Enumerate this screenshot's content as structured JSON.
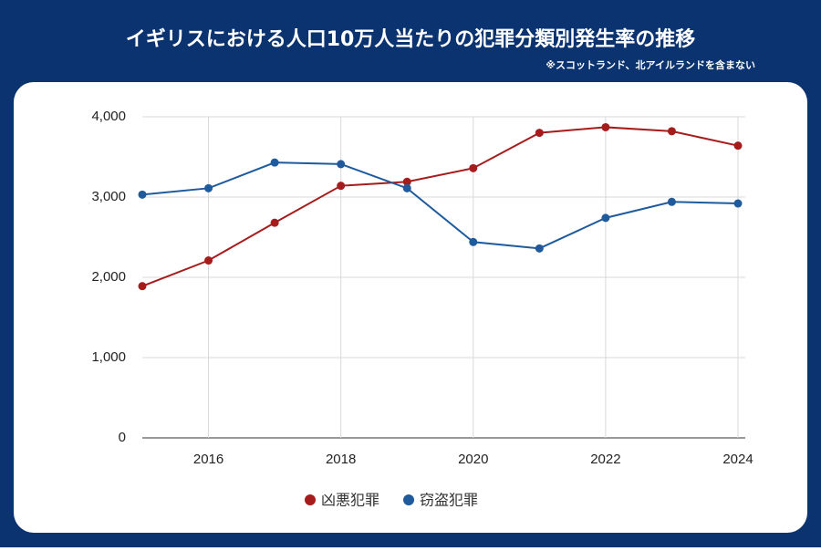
{
  "chart_data": {
    "type": "line",
    "title": "イギリスにおける人口10万人当たりの犯罪分類別発生率の推移",
    "subtitle": "※スコットランド、北アイルランドを含まない",
    "x": [
      2015,
      2016,
      2017,
      2018,
      2019,
      2020,
      2021,
      2022,
      2023,
      2024
    ],
    "series": [
      {
        "name": "凶悪犯罪",
        "color": "#a61c1c",
        "values": [
          1890,
          2210,
          2680,
          3140,
          3190,
          3360,
          3800,
          3870,
          3820,
          3640
        ]
      },
      {
        "name": "窃盗犯罪",
        "color": "#1f5b9c",
        "values": [
          3030,
          3110,
          3430,
          3410,
          3110,
          2440,
          2360,
          2740,
          2940,
          2920
        ]
      }
    ],
    "xlim": [
      2015,
      2024
    ],
    "xticks": [
      2016,
      2018,
      2020,
      2022,
      2024
    ],
    "ylim": [
      0,
      4000
    ],
    "yticks": [
      0,
      {
        "value": 1000,
        "label": "1,000"
      },
      {
        "value": 2000,
        "label": "2,000"
      },
      {
        "value": 3000,
        "label": "3,000"
      },
      {
        "value": 4000,
        "label": "4,000"
      }
    ],
    "grid": true,
    "legend": "bottom"
  }
}
